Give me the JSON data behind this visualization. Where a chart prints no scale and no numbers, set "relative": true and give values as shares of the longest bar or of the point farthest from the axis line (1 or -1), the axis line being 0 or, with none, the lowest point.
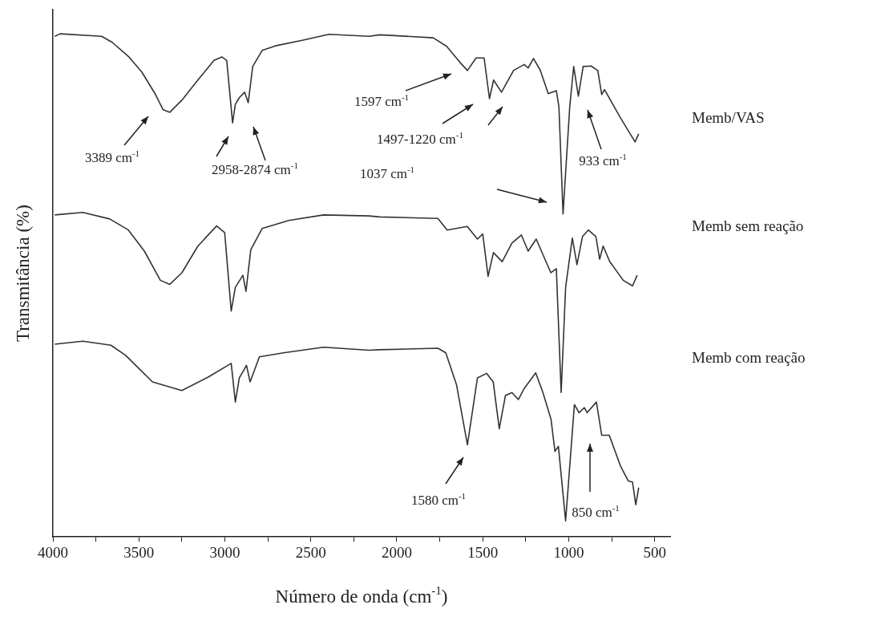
{
  "chart_data": {
    "type": "line",
    "relative": true,
    "xlabel": "Número de onda (cm$^{-1}$)",
    "ylabel": "Transmitância (%)",
    "xlim": [
      4000,
      410
    ],
    "xticks": [
      4000,
      {
        "value": 3750,
        "label": null
      },
      3500,
      {
        "value": 3250,
        "label": null
      },
      3000,
      {
        "value": 2750,
        "label": null
      },
      2500,
      {
        "value": 2250,
        "label": null
      },
      2000,
      {
        "value": 1750,
        "label": null
      },
      1500,
      {
        "value": 1250,
        "label": null
      },
      1000,
      {
        "value": 750,
        "label": null
      },
      500
    ],
    "legend": false,
    "marker": "none",
    "line_style": "solid",
    "series": [
      {
        "name": "Memb/VAS",
        "color": "#333333",
        "x": [
          3989,
          3958,
          3717,
          3655,
          3561,
          3483,
          3406,
          3359,
          3320,
          3250,
          3157,
          3063,
          3017,
          2989,
          2955,
          2939,
          2916,
          2885,
          2864,
          2838,
          2783,
          2706,
          2550,
          2395,
          2161,
          2099,
          1788,
          1710,
          1632,
          1589,
          1539,
          1492,
          1461,
          1437,
          1391,
          1321,
          1259,
          1236,
          1205,
          1166,
          1119,
          1072,
          1057,
          1033,
          994,
          971,
          944,
          916,
          870,
          831,
          808,
          792,
          699,
          653,
          614,
          593
        ],
        "values": [
          0.995,
          1.0,
          0.995,
          0.983,
          0.955,
          0.924,
          0.881,
          0.849,
          0.844,
          0.868,
          0.908,
          0.947,
          0.954,
          0.947,
          0.823,
          0.86,
          0.873,
          0.884,
          0.863,
          0.935,
          0.967,
          0.976,
          0.987,
          0.999,
          0.995,
          0.998,
          0.992,
          0.975,
          0.943,
          0.927,
          0.952,
          0.952,
          0.871,
          0.908,
          0.884,
          0.927,
          0.939,
          0.932,
          0.951,
          0.928,
          0.881,
          0.887,
          0.855,
          0.642,
          0.855,
          0.935,
          0.876,
          0.935,
          0.936,
          0.927,
          0.879,
          0.889,
          0.833,
          0.807,
          0.785,
          0.801
        ]
      },
      {
        "name": "Memb sem reação",
        "color": "#333333",
        "x": [
          3989,
          3826,
          3670,
          3561,
          3468,
          3375,
          3320,
          3250,
          3157,
          3048,
          3001,
          2963,
          2939,
          2895,
          2877,
          2849,
          2783,
          2628,
          2426,
          2161,
          2099,
          1761,
          1707,
          1590,
          1531,
          1500,
          1469,
          1438,
          1387,
          1330,
          1275,
          1236,
          1189,
          1104,
          1072,
          1044,
          1018,
          979,
          952,
          920,
          886,
          842,
          820,
          800,
          761,
          683,
          629,
          602
        ],
        "values": [
          0.64,
          0.645,
          0.632,
          0.61,
          0.568,
          0.51,
          0.502,
          0.525,
          0.578,
          0.618,
          0.605,
          0.449,
          0.496,
          0.52,
          0.488,
          0.571,
          0.613,
          0.629,
          0.64,
          0.638,
          0.636,
          0.633,
          0.61,
          0.617,
          0.592,
          0.602,
          0.518,
          0.565,
          0.547,
          0.584,
          0.6,
          0.568,
          0.592,
          0.525,
          0.533,
          0.287,
          0.496,
          0.594,
          0.541,
          0.597,
          0.61,
          0.597,
          0.552,
          0.578,
          0.547,
          0.51,
          0.499,
          0.52
        ]
      },
      {
        "name": "Memb com reação",
        "color": "#333333",
        "x": [
          3989,
          3826,
          3663,
          3577,
          3421,
          3250,
          3095,
          2963,
          2939,
          2916,
          2874,
          2853,
          2799,
          2659,
          2426,
          2161,
          2099,
          1761,
          1715,
          1653,
          1589,
          1531,
          1477,
          1439,
          1404,
          1368,
          1330,
          1293,
          1259,
          1192,
          1150,
          1103,
          1080,
          1060,
          1018,
          967,
          940,
          909,
          893,
          839,
          808,
          764,
          699,
          653,
          629,
          610,
          593
        ],
        "values": [
          0.383,
          0.389,
          0.381,
          0.361,
          0.308,
          0.291,
          0.318,
          0.345,
          0.268,
          0.316,
          0.341,
          0.308,
          0.358,
          0.366,
          0.377,
          0.371,
          0.372,
          0.375,
          0.366,
          0.303,
          0.183,
          0.316,
          0.325,
          0.308,
          0.215,
          0.281,
          0.287,
          0.273,
          0.295,
          0.326,
          0.287,
          0.234,
          0.17,
          0.18,
          0.032,
          0.263,
          0.247,
          0.257,
          0.247,
          0.268,
          0.202,
          0.202,
          0.141,
          0.111,
          0.109,
          0.064,
          0.098
        ]
      }
    ],
    "annotations": [
      "3389 cm$^{-1}$",
      "2958-2874 cm$^{-1}$",
      "1597 cm$^{-1}$",
      "1497-1220 cm$^{-1}$",
      "1037 cm$^{-1}$",
      "933 cm$^{-1}$",
      "1580 cm$^{-1}$",
      "850 cm$^{-1}$"
    ]
  }
}
